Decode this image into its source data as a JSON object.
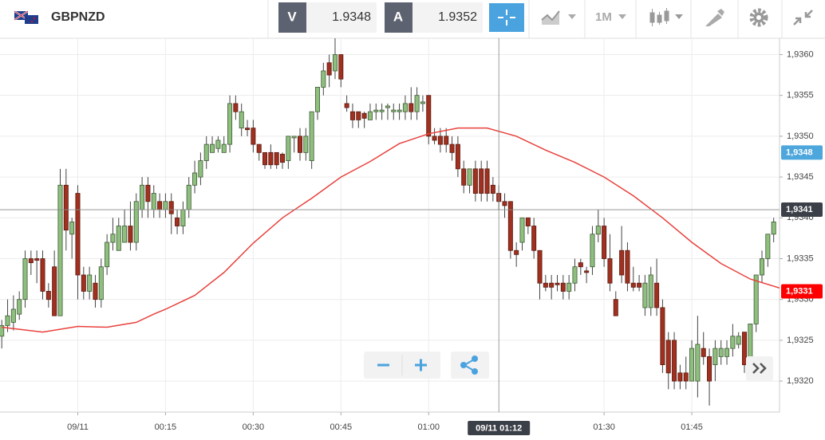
{
  "toolbar": {
    "symbol": "GBPNZD",
    "bid_label": "V",
    "bid": "1.9348",
    "ask_label": "A",
    "ask": "1.9352",
    "timeframe": "1M"
  },
  "chart_data": {
    "type": "candlestick",
    "x": [
      -13,
      -12,
      -11,
      -10,
      -9,
      -8,
      -7,
      -6,
      -5,
      -4,
      -3,
      -2,
      -1,
      0,
      1,
      2,
      3,
      4,
      5,
      6,
      7,
      8,
      9,
      10,
      11,
      12,
      13,
      14,
      15,
      16,
      17,
      18,
      19,
      20,
      21,
      22,
      23,
      24,
      25,
      26,
      27,
      28,
      29,
      30,
      31,
      32,
      33,
      34,
      35,
      36,
      37,
      38,
      39,
      40,
      41,
      42,
      43,
      44,
      45,
      46,
      47,
      48,
      49,
      50,
      51,
      52,
      53,
      54,
      55,
      56,
      57,
      58,
      59,
      60,
      61,
      62,
      63,
      64,
      65,
      66,
      67,
      68,
      69,
      70,
      71,
      72,
      73,
      74,
      75,
      76,
      77,
      78,
      79,
      80,
      81,
      82,
      83,
      84,
      85,
      86,
      87,
      88,
      89,
      90,
      91,
      92,
      93,
      94,
      95,
      96,
      97,
      98,
      99,
      100,
      101,
      102,
      103,
      104,
      105,
      106,
      107,
      108,
      109,
      110,
      111,
      112,
      113,
      114,
      115,
      116,
      117,
      118,
      119
    ],
    "open": [
      1.93255,
      1.93268,
      1.93272,
      1.93282,
      1.933,
      1.9335,
      1.9335,
      1.9335,
      1.9331,
      1.9334,
      1.9328,
      1.9344,
      1.9338,
      1.9343,
      1.9333,
      1.9331,
      1.9332,
      1.933,
      1.9334,
      1.9337,
      1.9336,
      1.9337,
      1.9339,
      1.9337,
      1.9341,
      1.9344,
      1.9341,
      1.9342,
      1.9341,
      1.9342,
      1.934,
      1.9339,
      1.9341,
      1.9344,
      1.9345,
      1.9347,
      1.9348,
      1.93485,
      1.9348,
      1.9349,
      1.9354,
      1.9351,
      1.9351,
      1.9351,
      1.9349,
      1.9348,
      1.9348,
      1.9348,
      1.93478,
      1.9347,
      1.93498,
      1.935,
      1.9348,
      1.9347,
      1.9353,
      1.9356,
      1.9359,
      1.9358,
      1.936,
      1.9354,
      1.9353,
      1.9353,
      1.93528,
      1.9352,
      1.9353,
      1.9353,
      1.93535,
      1.9353,
      1.9353,
      1.9353,
      1.9354,
      1.9353,
      1.9354,
      1.9355,
      1.935,
      1.935,
      1.935,
      1.9349,
      1.9349,
      1.9346,
      1.9344,
      1.9346,
      1.9346,
      1.9346,
      1.9344,
      1.9343,
      1.9342,
      1.9342,
      1.9336,
      1.9337,
      1.934,
      1.9339,
      1.9336,
      1.9332,
      1.9332,
      1.9332,
      1.9332,
      1.9331,
      1.9332,
      1.93345,
      1.93335,
      1.9334,
      1.9338,
      1.9339,
      1.9335,
      1.933,
      1.9336,
      1.9336,
      1.9332,
      1.9332,
      1.9329,
      1.9329,
      1.9332,
      1.9329,
      1.9325,
      1.9325,
      1.9321,
      1.9321,
      1.932,
      1.932,
      1.9324,
      1.9323,
      1.9322,
      1.9323,
      1.9323,
      1.9324,
      1.93245,
      1.9326,
      1.9322,
      1.9327,
      1.9333,
      1.9335,
      1.9338
    ],
    "high": [
      1.93275,
      1.933,
      1.93305,
      1.9331,
      1.9336,
      1.9336,
      1.9336,
      1.9336,
      1.9332,
      1.9336,
      1.9346,
      1.9346,
      1.934,
      1.9344,
      1.9334,
      1.9334,
      1.9333,
      1.9335,
      1.9338,
      1.934,
      1.934,
      1.9341,
      1.9342,
      1.9343,
      1.9345,
      1.9345,
      1.9344,
      1.9343,
      1.9343,
      1.9343,
      1.9341,
      1.9342,
      1.9345,
      1.9347,
      1.9348,
      1.935,
      1.935,
      1.935,
      1.935,
      1.9355,
      1.9355,
      1.9354,
      1.9352,
      1.9352,
      1.9349,
      1.9348,
      1.9349,
      1.9348,
      1.9348,
      1.935,
      1.935,
      1.9351,
      1.9351,
      1.9353,
      1.9356,
      1.9359,
      1.936,
      1.9362,
      1.936,
      1.9355,
      1.9354,
      1.9353,
      1.9353,
      1.9354,
      1.9354,
      1.9354,
      1.9354,
      1.9354,
      1.9354,
      1.9355,
      1.9356,
      1.9356,
      1.9355,
      1.9355,
      1.9351,
      1.9351,
      1.9351,
      1.935,
      1.935,
      1.9347,
      1.9346,
      1.9347,
      1.9347,
      1.9347,
      1.9345,
      1.9344,
      1.9343,
      1.9342,
      1.9337,
      1.934,
      1.934,
      1.934,
      1.9336,
      1.9333,
      1.9333,
      1.9333,
      1.9333,
      1.9333,
      1.9335,
      1.9335,
      1.9334,
      1.9339,
      1.9341,
      1.934,
      1.9338,
      1.9331,
      1.9339,
      1.9337,
      1.9334,
      1.9333,
      1.9333,
      1.9334,
      1.9335,
      1.933,
      1.9326,
      1.9326,
      1.9322,
      1.9323,
      1.9325,
      1.9328,
      1.9326,
      1.9324,
      1.9325,
      1.9325,
      1.9325,
      1.9327,
      1.9326,
      1.9326,
      1.9327,
      1.9333,
      1.9336,
      1.9338,
      1.934
    ],
    "low": [
      1.9324,
      1.9326,
      1.93262,
      1.93275,
      1.9329,
      1.9333,
      1.9332,
      1.933,
      1.9329,
      1.9328,
      1.9328,
      1.9336,
      1.9335,
      1.933,
      1.933,
      1.933,
      1.9329,
      1.9329,
      1.9333,
      1.9336,
      1.9336,
      1.9337,
      1.9336,
      1.9336,
      1.934,
      1.934,
      1.934,
      1.934,
      1.934,
      1.9338,
      1.9338,
      1.9338,
      1.934,
      1.9343,
      1.9344,
      1.9346,
      1.9348,
      1.9348,
      1.9348,
      1.9348,
      1.9352,
      1.935,
      1.935,
      1.9348,
      1.9347,
      1.9346,
      1.9346,
      1.9346,
      1.9346,
      1.9346,
      1.9348,
      1.9347,
      1.9347,
      1.9346,
      1.9352,
      1.9355,
      1.9356,
      1.9357,
      1.9356,
      1.9353,
      1.9351,
      1.9351,
      1.9351,
      1.9352,
      1.9352,
      1.9352,
      1.9352,
      1.9352,
      1.9352,
      1.9352,
      1.9352,
      1.9352,
      1.9353,
      1.9349,
      1.9349,
      1.9348,
      1.9348,
      1.9347,
      1.9345,
      1.9343,
      1.9343,
      1.9342,
      1.9342,
      1.9342,
      1.9342,
      1.9341,
      1.934,
      1.9335,
      1.9334,
      1.9336,
      1.9338,
      1.9335,
      1.933,
      1.9331,
      1.933,
      1.9331,
      1.933,
      1.933,
      1.9331,
      1.9333,
      1.9332,
      1.9333,
      1.9337,
      1.9334,
      1.9331,
      1.9328,
      1.9332,
      1.9331,
      1.9331,
      1.9331,
      1.9328,
      1.9328,
      1.9328,
      1.9321,
      1.9319,
      1.9319,
      1.9319,
      1.9319,
      1.932,
      1.9318,
      1.9322,
      1.9317,
      1.932,
      1.9322,
      1.9322,
      1.9323,
      1.9324,
      1.9321,
      1.9321,
      1.9326,
      1.9332,
      1.9334,
      1.9337
    ],
    "close": [
      1.93268,
      1.9328,
      1.93288,
      1.933,
      1.9335,
      1.93345,
      1.93348,
      1.9331,
      1.933,
      1.9328,
      1.9344,
      1.93385,
      1.93395,
      1.9333,
      1.9331,
      1.9333,
      1.933,
      1.9334,
      1.9337,
      1.9338,
      1.9339,
      1.9339,
      1.9337,
      1.9342,
      1.9344,
      1.9342,
      1.9343,
      1.9341,
      1.9342,
      1.93405,
      1.9339,
      1.9341,
      1.9344,
      1.93455,
      1.9347,
      1.9349,
      1.9349,
      1.93495,
      1.9349,
      1.9354,
      1.9353,
      1.9353,
      1.93508,
      1.9349,
      1.9348,
      1.93465,
      1.93465,
      1.93465,
      1.93468,
      1.935,
      1.935,
      1.9348,
      1.935,
      1.9353,
      1.9356,
      1.9358,
      1.93575,
      1.936,
      1.9357,
      1.93535,
      1.9352,
      1.9352,
      1.93522,
      1.9353,
      1.93532,
      1.93532,
      1.93537,
      1.93532,
      1.93532,
      1.9354,
      1.9353,
      1.9355,
      1.93542,
      1.935,
      1.93495,
      1.9349,
      1.9349,
      1.9348,
      1.9346,
      1.9344,
      1.9346,
      1.9343,
      1.9343,
      1.9343,
      1.9343,
      1.9342,
      1.93415,
      1.9336,
      1.93355,
      1.934,
      1.9339,
      1.9336,
      1.9332,
      1.93315,
      1.93315,
      1.93318,
      1.9331,
      1.9332,
      1.9334,
      1.9334,
      1.93333,
      1.9338,
      1.9339,
      1.9335,
      1.9332,
      1.9328,
      1.9333,
      1.9332,
      1.93315,
      1.93315,
      1.9332,
      1.9333,
      1.9329,
      1.9322,
      1.9321,
      1.932,
      1.932,
      1.932,
      1.9324,
      1.93245,
      1.9323,
      1.932,
      1.9324,
      1.9324,
      1.9324,
      1.93255,
      1.93255,
      1.9322,
      1.9327,
      1.9333,
      1.9335,
      1.9338,
      1.93395
    ],
    "up_color": "#8fbf7f",
    "down_color": "#a0301f",
    "moving_average": {
      "color": "#e8413c",
      "x": [
        -13,
        -6,
        0,
        5,
        10,
        13,
        15,
        20,
        25,
        30,
        35,
        40,
        45,
        50,
        55,
        60,
        65,
        70,
        75,
        80,
        85,
        90,
        95,
        100,
        105,
        110,
        115,
        120
      ],
      "values": [
        1.93266,
        1.9326,
        1.93267,
        1.93266,
        1.93272,
        1.93282,
        1.93288,
        1.93305,
        1.93333,
        1.93369,
        1.934,
        1.93424,
        1.9345,
        1.93469,
        1.93491,
        1.93503,
        1.9351,
        1.9351,
        1.935,
        1.93483,
        1.93468,
        1.9345,
        1.93427,
        1.934,
        1.9337,
        1.93344,
        1.93325,
        1.93314
      ]
    },
    "xlim": [
      -13.3,
      120
    ],
    "ylim": [
      1.93162,
      1.9362
    ],
    "xticks": [
      {
        "value": 0,
        "label": "09/11"
      },
      {
        "value": 15,
        "label": "00:15"
      },
      {
        "value": 30,
        "label": "00:30"
      },
      {
        "value": 45,
        "label": "00:45"
      },
      {
        "value": 60,
        "label": "01:00"
      },
      {
        "value": 90,
        "label": "01:30"
      },
      {
        "value": 105,
        "label": "01:45"
      }
    ],
    "yticks": [
      {
        "value": 1.932,
        "label": "1,9320"
      },
      {
        "value": 1.9325,
        "label": "1,9325"
      },
      {
        "value": 1.933,
        "label": "1,9330"
      },
      {
        "value": 1.9335,
        "label": "1,9335"
      },
      {
        "value": 1.934,
        "label": "1,9340"
      },
      {
        "value": 1.9345,
        "label": "1,9345"
      },
      {
        "value": 1.935,
        "label": "1,9350"
      },
      {
        "value": 1.9355,
        "label": "1,9355"
      },
      {
        "value": 1.936,
        "label": "1,9360"
      }
    ],
    "grid": true,
    "price_tags": [
      {
        "value": 1.9348,
        "label": "1,9348",
        "color": "#4da6dc"
      },
      {
        "value": 1.9331,
        "label": "1,9331",
        "color": "#ff0000"
      },
      {
        "value": 1.9341,
        "label": "1,9341",
        "color": "#3b3f47"
      }
    ],
    "crosshair": {
      "x": {
        "value": 72,
        "label": "09/11 01:12"
      },
      "y": 1.9341
    }
  }
}
